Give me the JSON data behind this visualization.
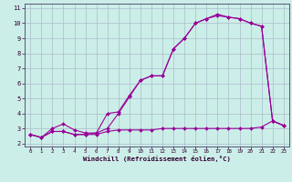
{
  "xlabel": "Windchill (Refroidissement éolien,°C)",
  "bg_color": "#cceee8",
  "line_color": "#990099",
  "grid_color": "#aabbcc",
  "xlim": [
    -0.5,
    23.5
  ],
  "ylim": [
    1.8,
    11.3
  ],
  "xticks": [
    0,
    1,
    2,
    3,
    4,
    5,
    6,
    7,
    8,
    9,
    10,
    11,
    12,
    13,
    14,
    15,
    16,
    17,
    18,
    19,
    20,
    21,
    22,
    23
  ],
  "yticks": [
    2,
    3,
    4,
    5,
    6,
    7,
    8,
    9,
    10,
    11
  ],
  "line1_x": [
    0,
    1,
    2,
    3,
    4,
    5,
    6,
    7,
    8,
    9,
    10,
    11,
    12,
    13,
    14,
    15,
    16,
    17,
    18,
    19,
    20,
    21,
    22,
    23
  ],
  "line1_y": [
    2.6,
    2.4,
    3.0,
    3.3,
    2.9,
    2.7,
    2.7,
    4.0,
    4.1,
    5.2,
    6.2,
    6.5,
    6.5,
    8.3,
    9.0,
    10.0,
    10.3,
    10.6,
    10.4,
    10.3,
    10.0,
    9.8,
    3.5,
    3.2
  ],
  "line2_x": [
    0,
    1,
    2,
    3,
    4,
    5,
    6,
    7,
    8,
    9,
    10,
    11,
    12,
    13,
    14,
    15,
    16,
    17,
    18,
    19,
    20,
    21,
    22,
    23
  ],
  "line2_y": [
    2.6,
    2.4,
    2.8,
    2.8,
    2.6,
    2.6,
    2.7,
    3.0,
    4.0,
    5.1,
    6.2,
    6.5,
    6.5,
    8.3,
    9.0,
    10.0,
    10.3,
    10.5,
    10.4,
    10.3,
    10.0,
    9.8,
    3.5,
    3.2
  ],
  "line3_x": [
    0,
    1,
    2,
    3,
    4,
    5,
    6,
    7,
    8,
    9,
    10,
    11,
    12,
    13,
    14,
    15,
    16,
    17,
    18,
    19,
    20,
    21,
    22,
    23
  ],
  "line3_y": [
    2.6,
    2.4,
    2.8,
    2.8,
    2.6,
    2.6,
    2.6,
    2.8,
    2.9,
    2.9,
    2.9,
    2.9,
    3.0,
    3.0,
    3.0,
    3.0,
    3.0,
    3.0,
    3.0,
    3.0,
    3.0,
    3.1,
    3.5,
    3.2
  ],
  "spine_color": "#555577",
  "tick_color": "#330033",
  "xlabel_color": "#330033"
}
